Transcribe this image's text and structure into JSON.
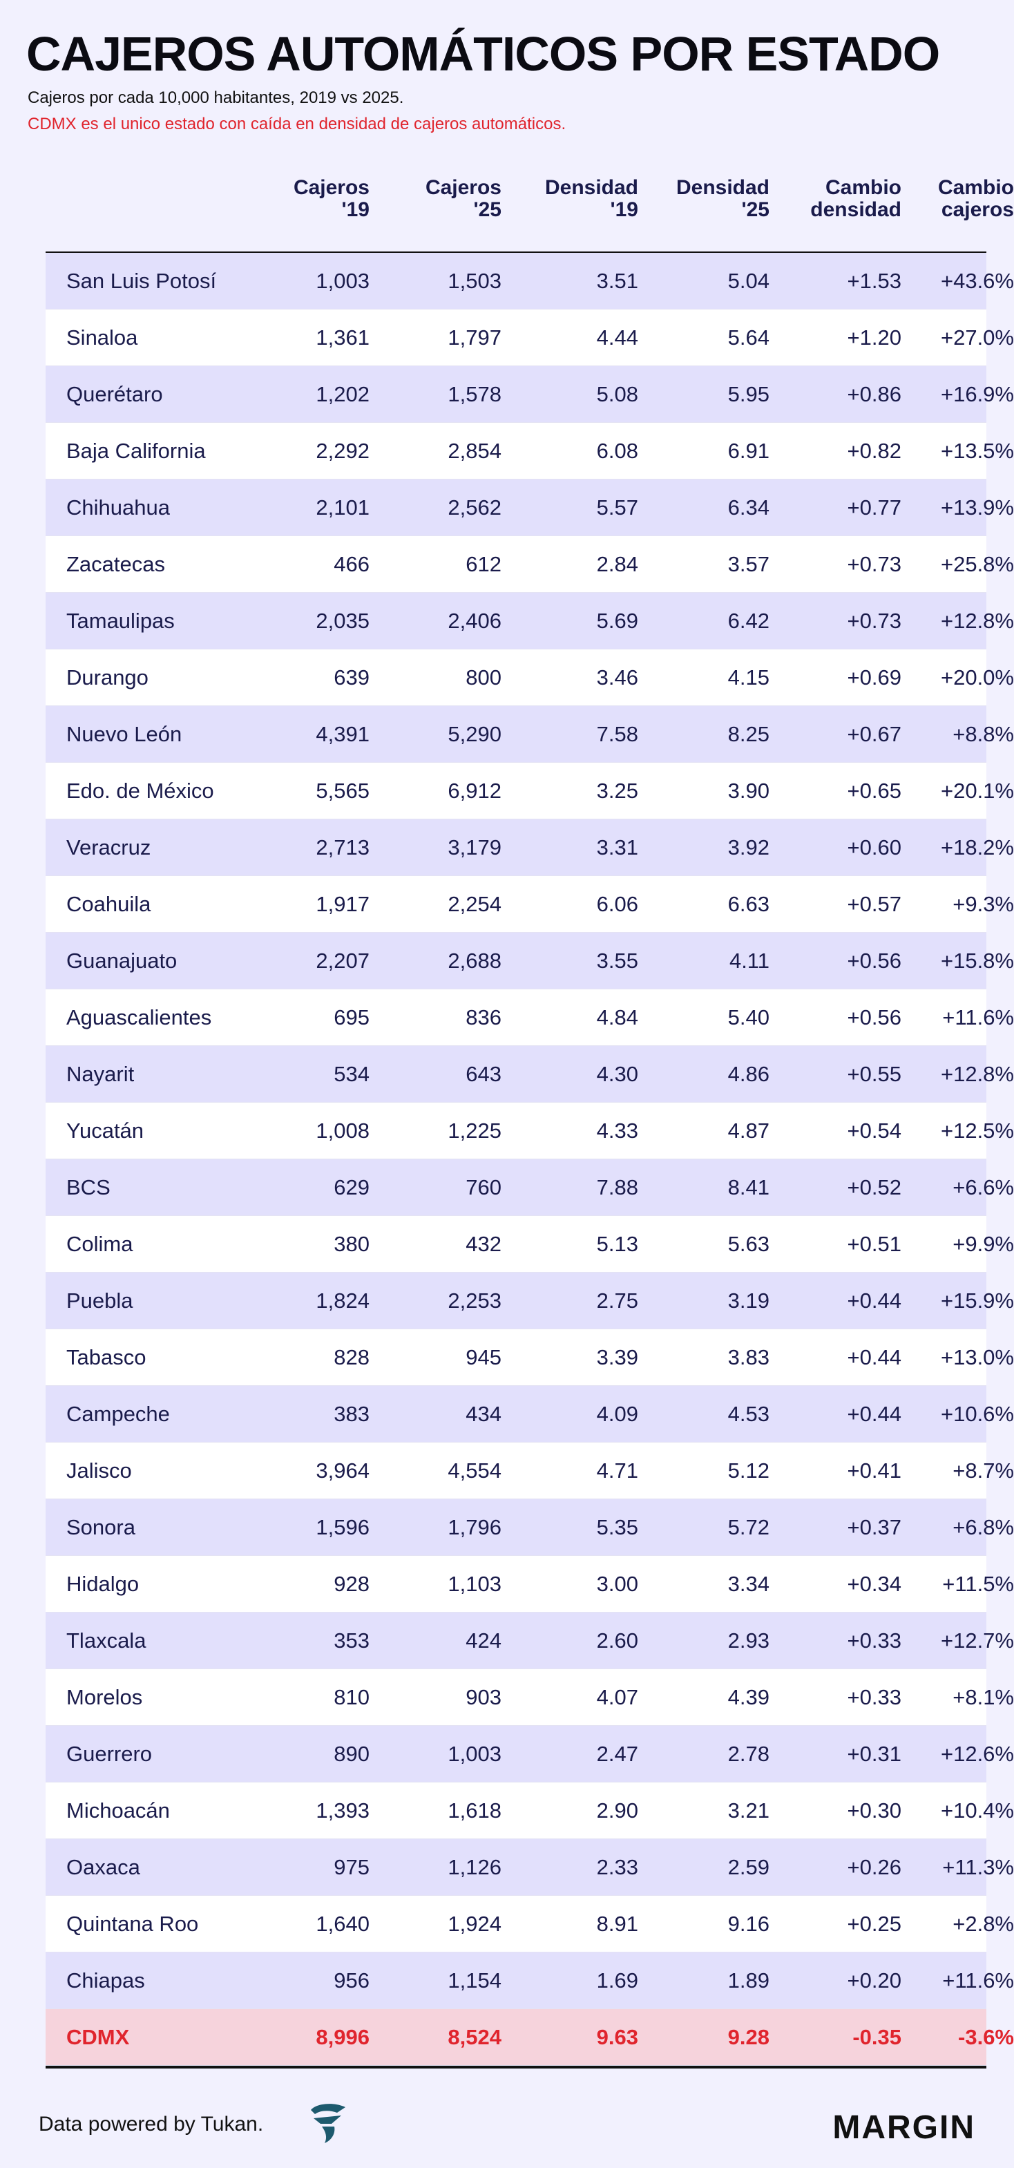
{
  "header": {
    "title": "CAJEROS AUTOMÁTICOS POR ESTADO",
    "subtitle": "Cajeros por cada 10,000 habitantes, 2019 vs 2025.",
    "note": "CDMX es el unico estado con caída en densidad de cajeros automáticos."
  },
  "colors": {
    "background": "#f2f1fe",
    "row_alt": "#e2e0fc",
    "highlight_row": "#f6d3dc",
    "highlight_text": "#e0242d",
    "text": "#1a1b4b"
  },
  "chart_data": {
    "type": "table",
    "title": "CAJEROS AUTOMÁTICOS POR ESTADO",
    "subtitle": "Cajeros por cada 10,000 habitantes, 2019 vs 2025.",
    "columns": [
      {
        "l1": "",
        "l2": ""
      },
      {
        "l1": "Cajeros",
        "l2": "'19"
      },
      {
        "l1": "Cajeros",
        "l2": "'25"
      },
      {
        "l1": "Densidad",
        "l2": "'19"
      },
      {
        "l1": "Densidad",
        "l2": "'25"
      },
      {
        "l1": "Cambio",
        "l2": "densidad"
      },
      {
        "l1": "Cambio",
        "l2": "cajeros"
      }
    ],
    "rows": [
      [
        "San Luis Potosí",
        "1,003",
        "1,503",
        "3.51",
        "5.04",
        "+1.53",
        "+43.6%"
      ],
      [
        "Sinaloa",
        "1,361",
        "1,797",
        "4.44",
        "5.64",
        "+1.20",
        "+27.0%"
      ],
      [
        "Querétaro",
        "1,202",
        "1,578",
        "5.08",
        "5.95",
        "+0.86",
        "+16.9%"
      ],
      [
        "Baja California",
        "2,292",
        "2,854",
        "6.08",
        "6.91",
        "+0.82",
        "+13.5%"
      ],
      [
        "Chihuahua",
        "2,101",
        "2,562",
        "5.57",
        "6.34",
        "+0.77",
        "+13.9%"
      ],
      [
        "Zacatecas",
        "466",
        "612",
        "2.84",
        "3.57",
        "+0.73",
        "+25.8%"
      ],
      [
        "Tamaulipas",
        "2,035",
        "2,406",
        "5.69",
        "6.42",
        "+0.73",
        "+12.8%"
      ],
      [
        "Durango",
        "639",
        "800",
        "3.46",
        "4.15",
        "+0.69",
        "+20.0%"
      ],
      [
        "Nuevo León",
        "4,391",
        "5,290",
        "7.58",
        "8.25",
        "+0.67",
        "+8.8%"
      ],
      [
        "Edo. de México",
        "5,565",
        "6,912",
        "3.25",
        "3.90",
        "+0.65",
        "+20.1%"
      ],
      [
        "Veracruz",
        "2,713",
        "3,179",
        "3.31",
        "3.92",
        "+0.60",
        "+18.2%"
      ],
      [
        "Coahuila",
        "1,917",
        "2,254",
        "6.06",
        "6.63",
        "+0.57",
        "+9.3%"
      ],
      [
        "Guanajuato",
        "2,207",
        "2,688",
        "3.55",
        "4.11",
        "+0.56",
        "+15.8%"
      ],
      [
        "Aguascalientes",
        "695",
        "836",
        "4.84",
        "5.40",
        "+0.56",
        "+11.6%"
      ],
      [
        "Nayarit",
        "534",
        "643",
        "4.30",
        "4.86",
        "+0.55",
        "+12.8%"
      ],
      [
        "Yucatán",
        "1,008",
        "1,225",
        "4.33",
        "4.87",
        "+0.54",
        "+12.5%"
      ],
      [
        "BCS",
        "629",
        "760",
        "7.88",
        "8.41",
        "+0.52",
        "+6.6%"
      ],
      [
        "Colima",
        "380",
        "432",
        "5.13",
        "5.63",
        "+0.51",
        "+9.9%"
      ],
      [
        "Puebla",
        "1,824",
        "2,253",
        "2.75",
        "3.19",
        "+0.44",
        "+15.9%"
      ],
      [
        "Tabasco",
        "828",
        "945",
        "3.39",
        "3.83",
        "+0.44",
        "+13.0%"
      ],
      [
        "Campeche",
        "383",
        "434",
        "4.09",
        "4.53",
        "+0.44",
        "+10.6%"
      ],
      [
        "Jalisco",
        "3,964",
        "4,554",
        "4.71",
        "5.12",
        "+0.41",
        "+8.7%"
      ],
      [
        "Sonora",
        "1,596",
        "1,796",
        "5.35",
        "5.72",
        "+0.37",
        "+6.8%"
      ],
      [
        "Hidalgo",
        "928",
        "1,103",
        "3.00",
        "3.34",
        "+0.34",
        "+11.5%"
      ],
      [
        "Tlaxcala",
        "353",
        "424",
        "2.60",
        "2.93",
        "+0.33",
        "+12.7%"
      ],
      [
        "Morelos",
        "810",
        "903",
        "4.07",
        "4.39",
        "+0.33",
        "+8.1%"
      ],
      [
        "Guerrero",
        "890",
        "1,003",
        "2.47",
        "2.78",
        "+0.31",
        "+12.6%"
      ],
      [
        "Michoacán",
        "1,393",
        "1,618",
        "2.90",
        "3.21",
        "+0.30",
        "+10.4%"
      ],
      [
        "Oaxaca",
        "975",
        "1,126",
        "2.33",
        "2.59",
        "+0.26",
        "+11.3%"
      ],
      [
        "Quintana Roo",
        "1,640",
        "1,924",
        "8.91",
        "9.16",
        "+0.25",
        "+2.8%"
      ],
      [
        "Chiapas",
        "956",
        "1,154",
        "1.69",
        "1.89",
        "+0.20",
        "+11.6%"
      ],
      [
        "CDMX",
        "8,996",
        "8,524",
        "9.63",
        "9.28",
        "-0.35",
        "-3.6%"
      ]
    ],
    "highlight_row": "CDMX"
  },
  "footer": {
    "source": "Data powered by Tukan.",
    "source_logo_icon": "tukan-logo-icon",
    "brand": "MARGIN"
  }
}
